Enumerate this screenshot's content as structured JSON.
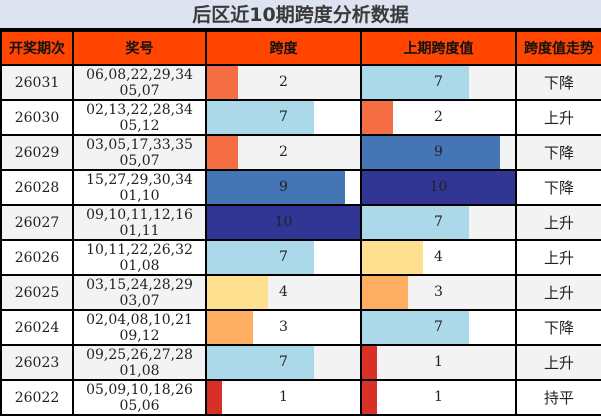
{
  "title": "后区近10期跨度分析数据",
  "headers": [
    "开奖期次",
    "奖号",
    "跨度",
    "上期跨度值",
    "跨度值走势"
  ],
  "colors": {
    "header_bg": "#ff4500",
    "title_bg": "#dde3f0",
    "span_1": "#d73027",
    "span_2": "#f46d43",
    "span_3": "#fdae61",
    "span_4": "#fee090",
    "span_7": "#abd9e9",
    "span_9": "#4575b4",
    "span_10": "#313695"
  },
  "max_span": 10,
  "rows": [
    {
      "period": "26031",
      "numbers": "06,08,22,29,34 05,07",
      "span": "2",
      "prev_span": "7",
      "trend": "下降"
    },
    {
      "period": "26030",
      "numbers": "02,13,22,28,34 05,12",
      "span": "7",
      "prev_span": "2",
      "trend": "上升"
    },
    {
      "period": "26029",
      "numbers": "03,05,17,33,35 05,07",
      "span": "2",
      "prev_span": "9",
      "trend": "下降"
    },
    {
      "period": "26028",
      "numbers": "15,27,29,30,34 01,10",
      "span": "9",
      "prev_span": "10",
      "trend": "下降"
    },
    {
      "period": "26027",
      "numbers": "09,10,11,12,16 01,11",
      "span": "10",
      "prev_span": "7",
      "trend": "上升"
    },
    {
      "period": "26026",
      "numbers": "10,11,22,26,32 01,08",
      "span": "7",
      "prev_span": "4",
      "trend": "上升"
    },
    {
      "period": "26025",
      "numbers": "03,15,24,28,29 03,07",
      "span": "4",
      "prev_span": "3",
      "trend": "上升"
    },
    {
      "period": "26024",
      "numbers": "02,04,08,10,21 09,12",
      "span": "3",
      "prev_span": "7",
      "trend": "下降"
    },
    {
      "period": "26023",
      "numbers": "09,25,26,27,28 01,08",
      "span": "7",
      "prev_span": "1",
      "trend": "上升"
    },
    {
      "period": "26022",
      "numbers": "05,09,10,18,26 05,06",
      "span": "1",
      "prev_span": "1",
      "trend": "持平"
    }
  ]
}
